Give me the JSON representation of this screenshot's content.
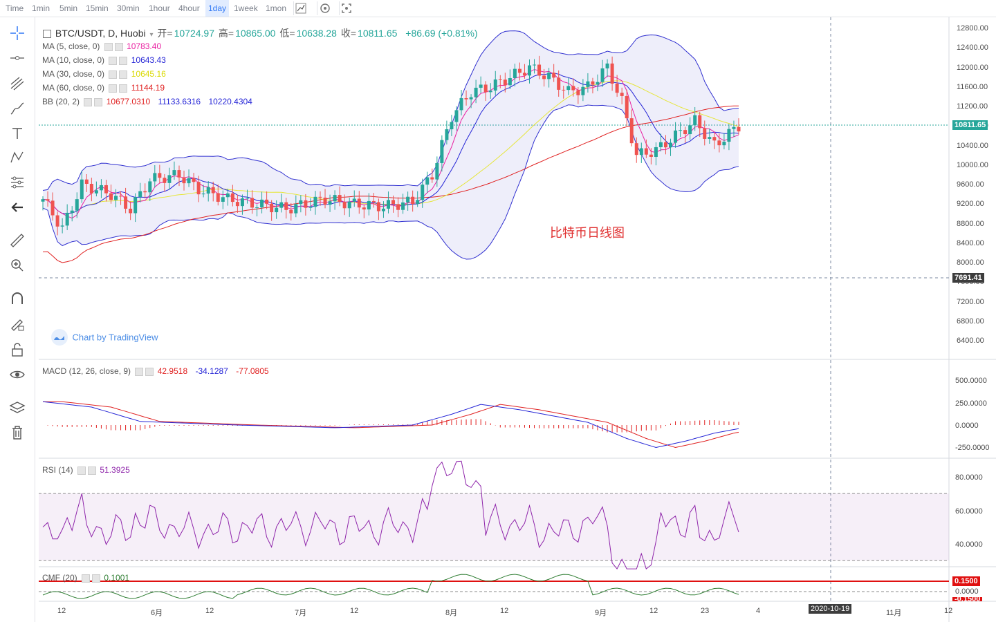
{
  "toolbar": {
    "timeframes": [
      "Time",
      "1min",
      "5min",
      "15min",
      "30min",
      "1hour",
      "4hour",
      "1day",
      "1week",
      "1mon"
    ],
    "active": "1day"
  },
  "symbol": {
    "title": "BTC/USDT, D, Huobi",
    "open_label": "开=",
    "open": "10724.97",
    "high_label": "高=",
    "high": "10865.00",
    "low_label": "低=",
    "low": "10638.28",
    "close_label": "收=",
    "close": "10811.65",
    "change": "+86.69 (+0.81%)"
  },
  "indicators": {
    "ma5": {
      "label": "MA (5, close, 0)",
      "value": "10783.40",
      "color": "#e91ea0"
    },
    "ma10": {
      "label": "MA (10, close, 0)",
      "value": "10643.43",
      "color": "#2424d6"
    },
    "ma30": {
      "label": "MA (30, close, 0)",
      "value": "10645.16",
      "color": "#e6e63a"
    },
    "ma60": {
      "label": "MA (60, close, 0)",
      "value": "11144.19",
      "color": "#e02020"
    },
    "bb": {
      "label": "BB (20, 2)",
      "v1": "10677.0310",
      "v2": "11133.6316",
      "v3": "10220.4304"
    },
    "macd": {
      "label": "MACD (12, 26, close, 9)",
      "v1": "42.9518",
      "v2": "-34.1287",
      "v3": "-77.0805"
    },
    "rsi": {
      "label": "RSI (14)",
      "value": "51.3925"
    },
    "cmf": {
      "label": "CMF (20)",
      "value": "0.1001"
    }
  },
  "price_axis": [
    "12800.00",
    "12400.00",
    "12000.00",
    "11600.00",
    "11200.00",
    "10800.00",
    "10400.00",
    "10000.00",
    "9600.00",
    "9200.00",
    "8800.00",
    "8400.00",
    "8000.00",
    "7600.00",
    "7200.00",
    "6800.00",
    "6400.00"
  ],
  "price_tags": {
    "last": "10811.65",
    "cursor": "7691.41"
  },
  "macd_axis": [
    "500.0000",
    "250.0000",
    "0.0000",
    "-250.0000"
  ],
  "rsi_axis": [
    "80.0000",
    "60.0000",
    "40.0000"
  ],
  "cmf_axis": {
    "tag": "0.1500",
    "zero": "0.0000",
    "neg": "-0.1500"
  },
  "time_axis": [
    "12",
    "6月",
    "12",
    "7月",
    "12",
    "8月",
    "12",
    "9月",
    "12",
    "23",
    "4",
    "11月",
    "12"
  ],
  "time_cursor": "2020-10-19",
  "annotation": "比特币日线图",
  "branding": "Chart by TradingView",
  "colors": {
    "up": "#26a69a",
    "down": "#ef5350",
    "accent": "#3179f5"
  }
}
